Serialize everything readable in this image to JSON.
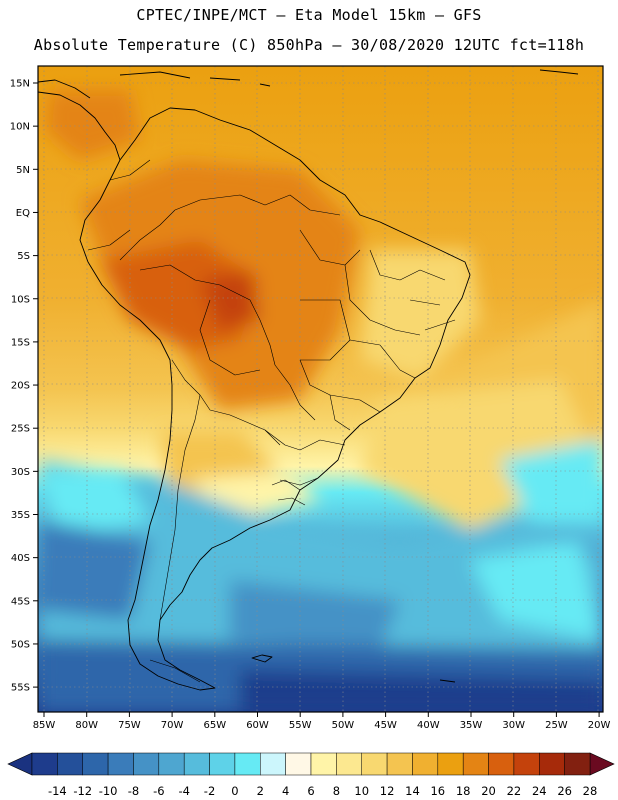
{
  "title_line1": "CPTEC/INPE/MCT –  Eta Model 15km – GFS",
  "title_line2": "Absolute Temperature (C) 850hPa – 30/08/2020 12UTC fct=118h",
  "map": {
    "lon_labels": [
      "85W",
      "80W",
      "75W",
      "70W",
      "65W",
      "60W",
      "55W",
      "50W",
      "45W",
      "40W",
      "35W",
      "30W",
      "25W",
      "20W"
    ],
    "lat_labels": [
      "15N",
      "10N",
      "5N",
      "EQ",
      "5S",
      "10S",
      "15S",
      "20S",
      "25S",
      "30S",
      "35S",
      "40S",
      "45S",
      "50S",
      "55S"
    ]
  },
  "colorbar": {
    "labels": [
      "-14",
      "-12",
      "-10",
      "-8",
      "-6",
      "-4",
      "-2",
      "0",
      "2",
      "4",
      "6",
      "8",
      "10",
      "12",
      "14",
      "16",
      "18",
      "20",
      "22",
      "24",
      "26",
      "28"
    ],
    "colors": [
      "#1e3c8c",
      "#24509a",
      "#2d66aa",
      "#3a7cba",
      "#4592c6",
      "#4ea6d0",
      "#56bcdc",
      "#5ed2e8",
      "#66eaf4",
      "#ccf6fc",
      "#fff8e6",
      "#fff4a8",
      "#fce890",
      "#f8d870",
      "#f4c450",
      "#f0b030",
      "#eba010",
      "#e48414",
      "#d8600e",
      "#c4420c",
      "#a62a0a",
      "#822010"
    ],
    "under_color": "#1a3280",
    "over_color": "#6a0a20"
  }
}
